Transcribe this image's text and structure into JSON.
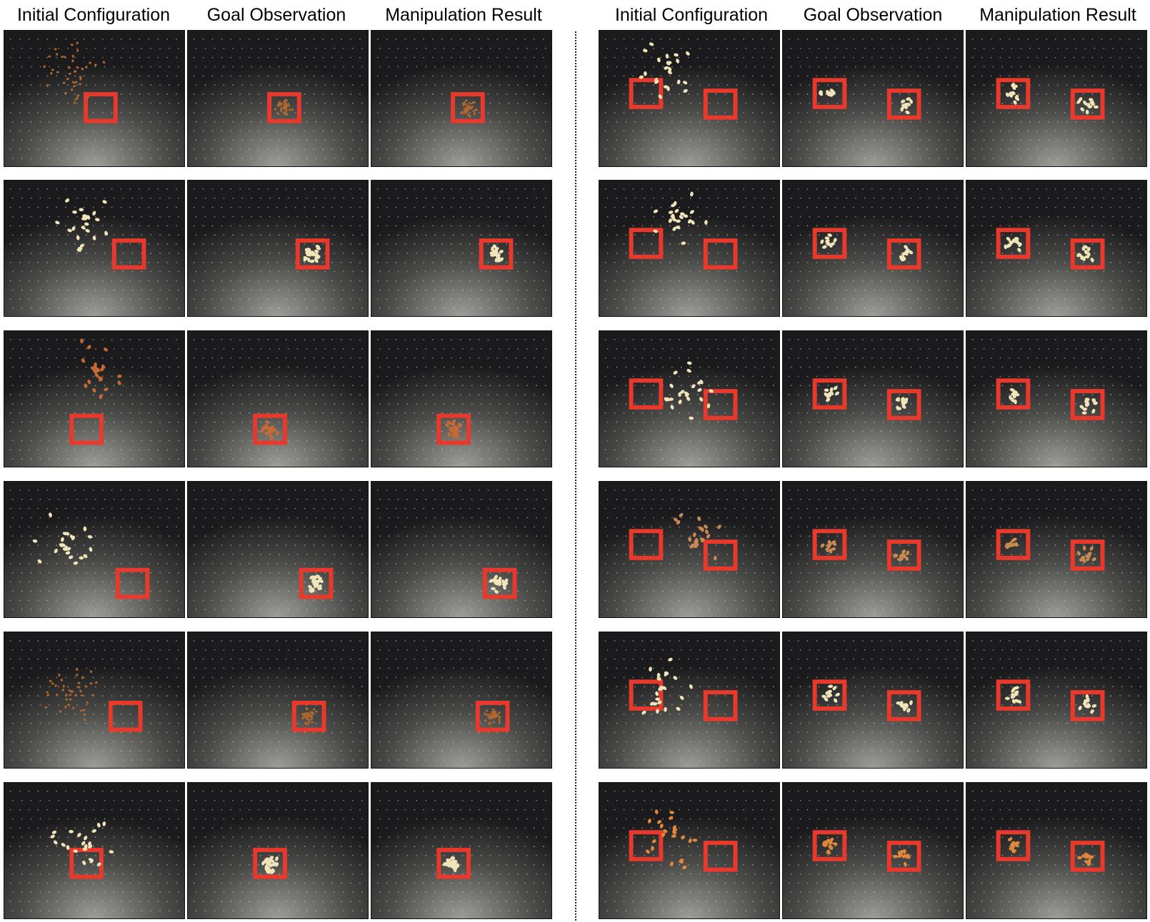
{
  "headers": {
    "left": [
      "Initial Configuration",
      "Goal Observation",
      "Manipulation Result"
    ],
    "right": [
      "Initial Configuration",
      "Goal Observation",
      "Manipulation Result"
    ]
  },
  "colors": {
    "tape": "#e8392c",
    "table": "#2b2b2b",
    "light": "#3b45d6"
  },
  "panels": {
    "left": [
      {
        "item": "small-brown",
        "targets": 1
      },
      {
        "item": "cream",
        "targets": 1
      },
      {
        "item": "almond",
        "targets": 1
      },
      {
        "item": "cream",
        "targets": 1
      },
      {
        "item": "small-brown",
        "targets": 1
      },
      {
        "item": "cream",
        "targets": 1
      }
    ],
    "right": [
      {
        "item": "cream",
        "targets": 2
      },
      {
        "item": "cream",
        "targets": 2
      },
      {
        "item": "cream",
        "targets": 2
      },
      {
        "item": "tan",
        "targets": 2
      },
      {
        "item": "cream",
        "targets": 2
      },
      {
        "item": "orange",
        "targets": 2
      }
    ]
  }
}
